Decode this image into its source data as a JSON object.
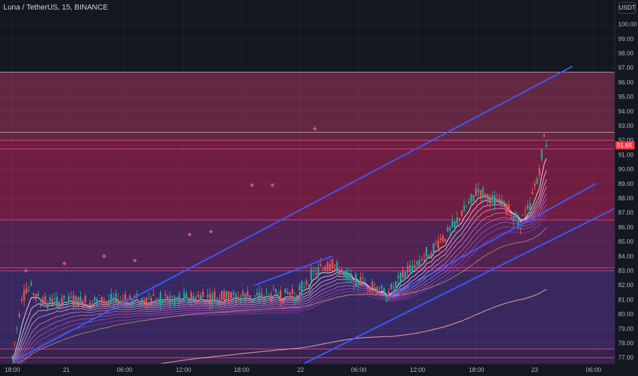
{
  "header": {
    "title": "Luna / TetherUS, 15, BINANCE",
    "currency": "USDT"
  },
  "chart_data": {
    "type": "candlestick",
    "symbol": "Luna / TetherUS",
    "interval": "15",
    "exchange": "BINANCE",
    "currency": "USDT",
    "ylim": [
      76.5,
      101.8
    ],
    "y_ticks": [
      "100.00",
      "99.00",
      "98.00",
      "97.00",
      "96.00",
      "95.00",
      "94.00",
      "93.00",
      "92.00",
      "91.00",
      "90.00",
      "89.00",
      "88.00",
      "87.00",
      "86.00",
      "85.00",
      "84.00",
      "83.00",
      "82.00",
      "81.00",
      "80.00",
      "79.00",
      "78.00",
      "77.00"
    ],
    "x_ticks": [
      "18:00",
      "21",
      "06:00",
      "12:00",
      "18:00",
      "22",
      "06:00",
      "12:00",
      "18:00",
      "23",
      "06:00"
    ],
    "current_price": 91.65,
    "zones": [
      {
        "from": 92.0,
        "to": 96.7,
        "color": "#6b2a45"
      },
      {
        "from": 86.5,
        "to": 92.0,
        "color": "#7a1f45"
      },
      {
        "from": 83.1,
        "to": 86.5,
        "color": "#5a2459"
      },
      {
        "from": 77.6,
        "to": 83.1,
        "color": "#3d2a66"
      },
      {
        "from": 76.5,
        "to": 77.6,
        "color": "#3d2552"
      }
    ],
    "levels": [
      96.7,
      92.55,
      92.0,
      91.4,
      86.5,
      83.2,
      83.0,
      77.6,
      77.0
    ],
    "trendlines": [
      {
        "from": [
          "18:15",
          76.8
        ],
        "to": [
          "+2d 05:30",
          97.1
        ]
      },
      {
        "from": [
          "21 09:45",
          81.1
        ],
        "to": [
          "+2d 08:00",
          89.0
        ]
      },
      {
        "from": [
          "21 01:00",
          76.6
        ],
        "to": [
          "+2d 12:30",
          88.1
        ]
      },
      {
        "from": [
          "20 19:45",
          82.0
        ],
        "to": [
          "21 04:00",
          84.0
        ]
      }
    ],
    "ohlc_anchors": [
      {
        "t": "18:00",
        "close": 77.0
      },
      {
        "t": "19:00",
        "close": 81.2
      },
      {
        "t": "20:00",
        "close": 81.7
      },
      {
        "t": "21:00",
        "close": 80.8
      },
      {
        "t": "21 00:00",
        "close": 81.3
      },
      {
        "t": "21 02:00",
        "close": 82.8
      },
      {
        "t": "21 04:00",
        "close": 83.4
      },
      {
        "t": "21 06:00",
        "close": 82.4
      },
      {
        "t": "21 08:00",
        "close": 82.0
      },
      {
        "t": "21 09:45",
        "close": 81.3
      },
      {
        "t": "21 12:00",
        "close": 83.0
      },
      {
        "t": "21 14:00",
        "close": 84.2
      },
      {
        "t": "21 16:00",
        "close": 85.3
      },
      {
        "t": "21 18:00",
        "close": 87.1
      },
      {
        "t": "21 19:30",
        "close": 88.6
      },
      {
        "t": "21 21:00",
        "close": 87.9
      },
      {
        "t": "21 23:00",
        "close": 87.0
      },
      {
        "t": "22 00:00",
        "close": 86.3
      },
      {
        "t": "22 01:00",
        "close": 87.4
      },
      {
        "t": "22 02:00",
        "close": 90.0
      },
      {
        "t": "22 02:30",
        "close": 92.1
      },
      {
        "t": "22 03:00",
        "close": 91.6
      }
    ]
  }
}
